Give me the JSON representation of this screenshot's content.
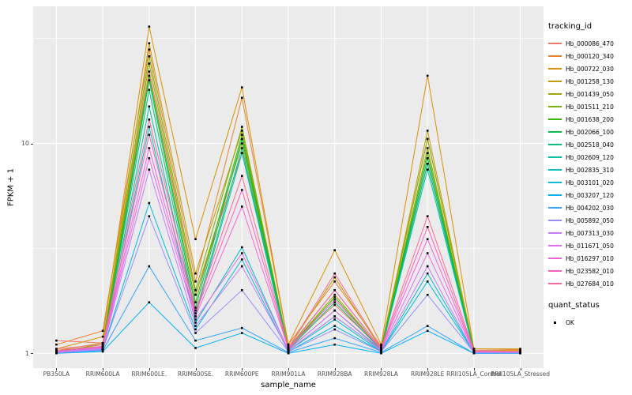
{
  "chart_data": {
    "type": "line",
    "title": "",
    "xlabel": "sample_name",
    "ylabel": "FPKM + 1",
    "y_scale": "log10",
    "ylim": [
      0.85,
      45
    ],
    "y_ticks": [
      {
        "value": 1,
        "label": "1"
      },
      {
        "value": 10,
        "label": "10"
      }
    ],
    "y_minor": [
      3.162,
      31.623
    ],
    "grid": "on",
    "legend_position": "right",
    "panel_bg": "#EBEBEB",
    "grid_color": "#FFFFFF",
    "point_color": "#000000",
    "color_legend_title": "tracking_id",
    "shape_legend": {
      "title": "quant_status",
      "items": [
        {
          "label": "OK",
          "marker": "black-point"
        }
      ]
    },
    "categories": [
      "PB350LA",
      "RRIM600LA",
      "RRIM600LE.",
      "RRIM600SE.",
      "RRIM600PE",
      "RRIM901LA",
      "RRIM928BA",
      "RRIM928LA",
      "RRIM928LE",
      "RRII105LA_Control",
      "RRII105LA_Stressed"
    ],
    "series": [
      {
        "name": "Hb_000086_470",
        "color": "#F8766D",
        "values": [
          1.15,
          1.12,
          22,
          1.9,
          9.0,
          1.08,
          1.7,
          1.06,
          8.0,
          1.03,
          1.03
        ]
      },
      {
        "name": "Hb_000120_340",
        "color": "#EA8331",
        "values": [
          1.1,
          1.28,
          28,
          2.2,
          16.5,
          1.1,
          2.2,
          1.08,
          10.5,
          1.05,
          1.04
        ]
      },
      {
        "name": "Hb_000722_030",
        "color": "#D89000",
        "values": [
          1.05,
          1.2,
          36,
          3.5,
          18.5,
          1.1,
          3.1,
          1.1,
          21.0,
          1.05,
          1.05
        ]
      },
      {
        "name": "Hb_001258_130",
        "color": "#C09B00",
        "values": [
          1.03,
          1.12,
          30,
          2.4,
          11.5,
          1.06,
          2.3,
          1.05,
          11.5,
          1.03,
          1.03
        ]
      },
      {
        "name": "Hb_001439_050",
        "color": "#A3A500",
        "values": [
          1.03,
          1.08,
          24,
          1.9,
          10.0,
          1.05,
          1.9,
          1.04,
          9.5,
          1.02,
          1.02
        ]
      },
      {
        "name": "Hb_001511_210",
        "color": "#7CAE00",
        "values": [
          1.02,
          1.1,
          26,
          2.0,
          12.0,
          1.06,
          2.0,
          1.05,
          10.5,
          1.03,
          1.02
        ]
      },
      {
        "name": "Hb_001638_200",
        "color": "#39B600",
        "values": [
          1.02,
          1.08,
          21,
          1.75,
          11.0,
          1.05,
          1.85,
          1.04,
          9.0,
          1.02,
          1.02
        ]
      },
      {
        "name": "Hb_002066_100",
        "color": "#00BB4E",
        "values": [
          1.02,
          1.06,
          20,
          1.65,
          10.5,
          1.04,
          1.75,
          1.04,
          8.5,
          1.02,
          1.01
        ]
      },
      {
        "name": "Hb_002518_040",
        "color": "#00BF7D",
        "values": [
          1.01,
          1.05,
          18,
          1.55,
          9.5,
          1.04,
          1.6,
          1.03,
          8.0,
          1.02,
          1.01
        ]
      },
      {
        "name": "Hb_002609_120",
        "color": "#00C1A3",
        "values": [
          1.01,
          1.05,
          15,
          1.5,
          9.0,
          1.03,
          1.5,
          1.03,
          7.5,
          1.01,
          1.01
        ]
      },
      {
        "name": "Hb_002835_310",
        "color": "#00BFC4",
        "values": [
          1.01,
          1.04,
          12,
          1.4,
          3.2,
          1.03,
          1.45,
          1.02,
          2.4,
          1.01,
          1.01
        ]
      },
      {
        "name": "Hb_003101_020",
        "color": "#00BAE0",
        "values": [
          1.01,
          1.04,
          5.2,
          1.3,
          2.8,
          1.02,
          1.35,
          1.02,
          2.2,
          1.01,
          1.01
        ]
      },
      {
        "name": "Hb_003207_120",
        "color": "#00B0F6",
        "values": [
          1.0,
          1.02,
          1.75,
          1.06,
          1.25,
          1.0,
          1.1,
          1.0,
          1.28,
          1.0,
          1.0
        ]
      },
      {
        "name": "Hb_004202_030",
        "color": "#35A2FF",
        "values": [
          1.0,
          1.03,
          2.6,
          1.15,
          1.32,
          1.01,
          1.18,
          1.01,
          1.35,
          1.0,
          1.0
        ]
      },
      {
        "name": "Hb_005892_050",
        "color": "#9590FF",
        "values": [
          1.01,
          1.04,
          4.5,
          1.25,
          2.0,
          1.02,
          1.3,
          1.02,
          1.9,
          1.01,
          1.01
        ]
      },
      {
        "name": "Hb_007313_030",
        "color": "#C77CFF",
        "values": [
          1.01,
          1.05,
          7.5,
          1.35,
          2.6,
          1.03,
          1.5,
          1.03,
          2.6,
          1.01,
          1.01
        ]
      },
      {
        "name": "Hb_011671_050",
        "color": "#E76BF3",
        "values": [
          1.02,
          1.06,
          8.5,
          1.45,
          3.0,
          1.04,
          1.6,
          1.04,
          3.0,
          1.02,
          1.01
        ]
      },
      {
        "name": "Hb_016297_010",
        "color": "#FA62DB",
        "values": [
          1.02,
          1.07,
          9.5,
          1.5,
          5.0,
          1.05,
          1.8,
          1.05,
          3.5,
          1.02,
          1.02
        ]
      },
      {
        "name": "Hb_023582_010",
        "color": "#FF62BC",
        "values": [
          1.03,
          1.08,
          11,
          1.55,
          6.0,
          1.05,
          2.0,
          1.05,
          4.0,
          1.02,
          1.02
        ]
      },
      {
        "name": "Hb_027684_010",
        "color": "#FF6A98",
        "values": [
          1.05,
          1.1,
          13,
          1.6,
          7.0,
          1.06,
          2.4,
          1.06,
          4.5,
          1.03,
          1.02
        ]
      }
    ]
  }
}
